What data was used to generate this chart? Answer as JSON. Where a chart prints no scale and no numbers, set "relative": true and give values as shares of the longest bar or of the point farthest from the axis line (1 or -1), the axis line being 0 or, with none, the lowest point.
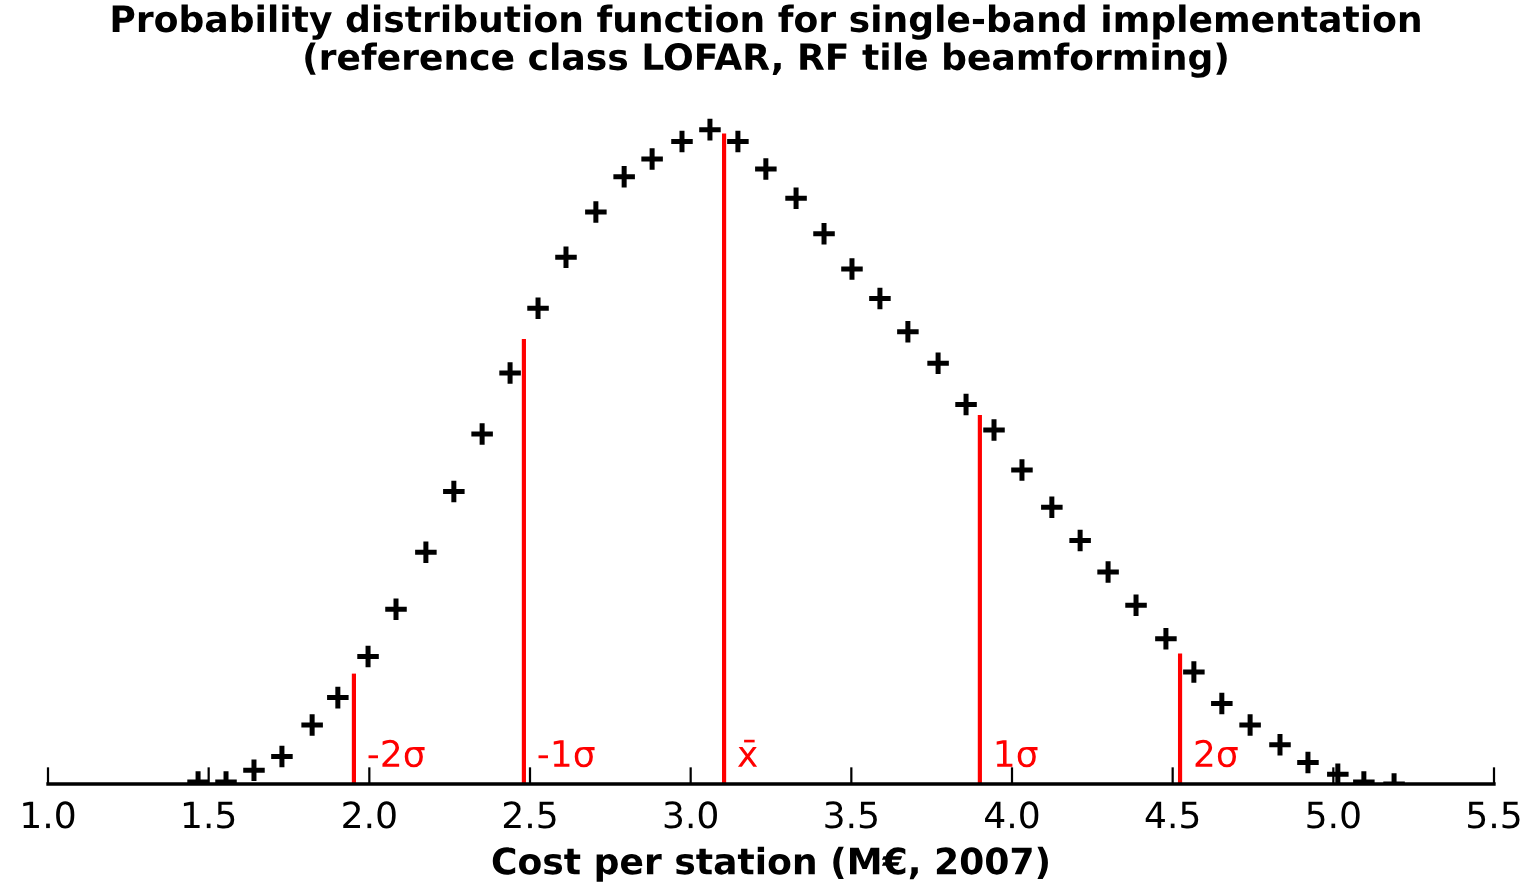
{
  "chart_data": {
    "type": "scatter",
    "title": "Probability distribution function for single-band implementation\n(reference class LOFAR, RF tile beamforming)",
    "xlabel": "Cost per station (M€, 2007)",
    "relative": true,
    "marker": "cross",
    "xlim": [
      1.0,
      5.5
    ],
    "xticks": [
      {
        "value": 1.0,
        "label": "1.0"
      },
      {
        "value": 1.5,
        "label": "1.5"
      },
      {
        "value": 2.0,
        "label": "2.0"
      },
      {
        "value": 2.5,
        "label": "2.5"
      },
      {
        "value": 3.0,
        "label": "3.0"
      },
      {
        "value": 3.5,
        "label": "3.5"
      },
      {
        "value": 4.0,
        "label": "4.0"
      },
      {
        "value": 4.5,
        "label": "4.5"
      },
      {
        "value": 5.0,
        "label": "5.0"
      },
      {
        "value": 5.5,
        "label": "5.5"
      }
    ],
    "grid": false,
    "legend": false,
    "x": [
      1.467,
      1.554,
      1.641,
      1.728,
      1.822,
      1.902,
      1.996,
      2.083,
      2.176,
      2.263,
      2.351,
      2.438,
      2.525,
      2.612,
      2.705,
      2.793,
      2.88,
      2.973,
      3.06,
      3.147,
      3.234,
      3.328,
      3.415,
      3.502,
      3.589,
      3.676,
      3.77,
      3.857,
      3.944,
      4.031,
      4.124,
      4.212,
      4.299,
      4.386,
      4.479,
      4.566,
      4.653,
      4.741,
      4.834,
      4.921,
      5.014,
      5.095,
      5.189
    ],
    "series": [
      {
        "color": "#000000",
        "values": [
          0.003,
          0.003,
          0.021,
          0.042,
          0.09,
          0.132,
          0.195,
          0.267,
          0.354,
          0.447,
          0.535,
          0.628,
          0.727,
          0.805,
          0.874,
          0.928,
          0.955,
          0.982,
          1.0,
          0.982,
          0.94,
          0.895,
          0.841,
          0.787,
          0.742,
          0.691,
          0.643,
          0.58,
          0.541,
          0.48,
          0.423,
          0.372,
          0.324,
          0.273,
          0.222,
          0.171,
          0.123,
          0.09,
          0.06,
          0.033,
          0.015,
          0.003,
          0.0
        ]
      }
    ],
    "ref_lines": [
      {
        "axis": "x",
        "value": 1.952,
        "label": "-2σ",
        "color": "#ff0000"
      },
      {
        "axis": "x",
        "value": 2.481,
        "label": "-1σ",
        "color": "#ff0000"
      },
      {
        "axis": "x",
        "value": 3.104,
        "label": "x̄",
        "color": "#ff0000"
      },
      {
        "axis": "x",
        "value": 3.9,
        "label": "1σ",
        "color": "#ff0000"
      },
      {
        "axis": "x",
        "value": 4.523,
        "label": "2σ",
        "color": "#ff0000"
      }
    ]
  }
}
